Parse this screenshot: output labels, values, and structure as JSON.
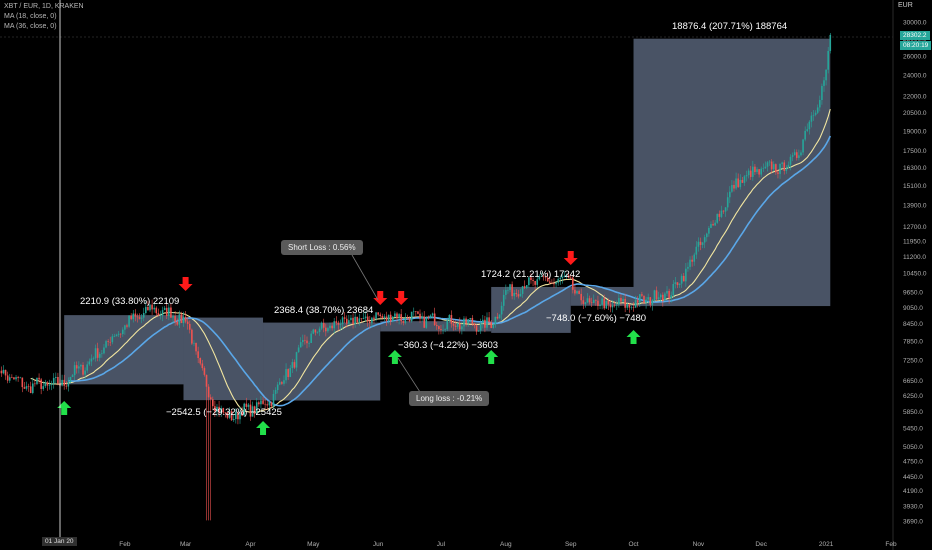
{
  "chart_data": {
    "type": "candlestick",
    "title": "XBT / EUR, 1D, KRAKEN",
    "symbol": "XBT / EUR",
    "interval": "1D",
    "exchange": "KRAKEN",
    "indicators": [
      {
        "label": "MA (18, close, 0)",
        "period": 18,
        "color": "#f2e6a0"
      },
      {
        "label": "MA (36, close, 0)",
        "period": 36,
        "color": "#5aa7e8"
      }
    ],
    "y_axis": {
      "title": "EUR",
      "ticks": [
        "30000.0",
        "28000.0",
        "26000.0",
        "24000.0",
        "22000.0",
        "20500.0",
        "19000.0",
        "17500.0",
        "16300.0",
        "15100.0",
        "13900.0",
        "12700.0",
        "11950.0",
        "11200.0",
        "10450.0",
        "9650.0",
        "9050.0",
        "8450.0",
        "7850.0",
        "7250.0",
        "6650.0",
        "6250.0",
        "5850.0",
        "5450.0",
        "5050.0",
        "4750.0",
        "4450.0",
        "4190.0",
        "3930.0",
        "3690.0"
      ],
      "scale": "log"
    },
    "x_axis": {
      "ticks": [
        "01 Jan 20",
        "Feb",
        "Mar",
        "Apr",
        "May",
        "Jun",
        "Jul",
        "Aug",
        "Sep",
        "Oct",
        "Nov",
        "Dec",
        "2021",
        "Feb"
      ],
      "range": [
        "2019-12-01",
        "2021-02-28"
      ]
    },
    "current_price": "28302.2",
    "current_time": "08:20:19",
    "price_series": {
      "dates": [
        "2019-12-01",
        "2019-12-15",
        "2020-01-01",
        "2020-01-15",
        "2020-02-01",
        "2020-02-14",
        "2020-03-01",
        "2020-03-12",
        "2020-03-20",
        "2020-04-01",
        "2020-04-10",
        "2020-04-30",
        "2020-05-10",
        "2020-06-01",
        "2020-06-15",
        "2020-07-01",
        "2020-07-25",
        "2020-08-01",
        "2020-08-15",
        "2020-09-01",
        "2020-09-05",
        "2020-09-20",
        "2020-10-01",
        "2020-10-20",
        "2020-11-01",
        "2020-11-20",
        "2020-12-01",
        "2020-12-15",
        "2020-12-20",
        "2021-01-01",
        "2021-01-03"
      ],
      "close": [
        7000,
        6500,
        6550,
        7200,
        8400,
        9000,
        8600,
        6300,
        5700,
        5900,
        6100,
        8100,
        8400,
        8700,
        8700,
        8500,
        8400,
        9600,
        10100,
        10100,
        9300,
        9100,
        9200,
        9700,
        11600,
        15400,
        16100,
        16500,
        17900,
        23900,
        28302
      ]
    },
    "trade_boxes": [
      {
        "from": "2020-01-03",
        "to": "2020-02-29",
        "entry": 6550,
        "exit": 8760,
        "label": "2210.9 (33.80%) 22109",
        "direction": "long"
      },
      {
        "from": "2020-02-29",
        "to": "2020-04-07",
        "entry": 8670,
        "exit": 6130,
        "label": "−2542.5 (−29.32%) −25425",
        "direction": "short"
      },
      {
        "from": "2020-04-07",
        "to": "2020-06-02",
        "entry": 6120,
        "exit": 8490,
        "label": "2368.4 (38.70%) 23684",
        "direction": "long"
      },
      {
        "from": "2020-06-02",
        "to": "2020-07-25",
        "entry": 8540,
        "exit": 8180,
        "label": "−360.3 (−4.22%) −3603",
        "direction": "short"
      },
      {
        "from": "2020-07-25",
        "to": "2020-09-01",
        "entry": 8130,
        "exit": 9860,
        "label": "1724.2 (21.21%) 17242",
        "direction": "long"
      },
      {
        "from": "2020-09-01",
        "to": "2020-10-01",
        "entry": 9860,
        "exit": 9110,
        "label": "−748.0 (−7.60%) −7480",
        "direction": "short"
      },
      {
        "from": "2020-10-01",
        "to": "2021-01-03",
        "entry": 9100,
        "exit": 27970,
        "label": "18876.4 (207.71%) 188764",
        "direction": "long"
      }
    ],
    "signals": [
      {
        "date": "2020-01-03",
        "type": "buy"
      },
      {
        "date": "2020-03-01",
        "type": "sell"
      },
      {
        "date": "2020-04-07",
        "type": "buy"
      },
      {
        "date": "2020-06-02",
        "type": "sell"
      },
      {
        "date": "2020-06-12",
        "type": "sell"
      },
      {
        "date": "2020-06-09",
        "type": "buy"
      },
      {
        "date": "2020-07-25",
        "type": "buy"
      },
      {
        "date": "2020-09-01",
        "type": "sell"
      },
      {
        "date": "2020-10-01",
        "type": "buy"
      }
    ],
    "annotations": [
      {
        "text": "Short Loss : 0.56%",
        "date": "2020-06-02"
      },
      {
        "text": "Long loss : -0.21%",
        "date": "2020-06-09"
      }
    ],
    "grid": false,
    "colors": {
      "up": "#26a69a",
      "down": "#ef5350",
      "box": "#7a8aa8",
      "buy_arrow": "#22e04a",
      "sell_arrow": "#ff1a1a",
      "crosshair": "#ffffff"
    }
  }
}
